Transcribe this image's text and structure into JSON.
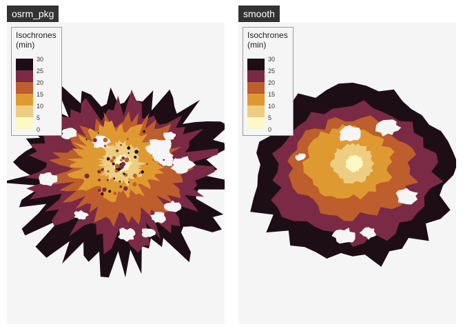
{
  "panels": [
    {
      "title": "osrm_pkg",
      "legend": {
        "title_line1": "Isochrones",
        "title_line2": "(min)",
        "ticks": [
          "30",
          "25",
          "20",
          "15",
          "10",
          "5",
          "0"
        ],
        "colors": [
          "#1d0e15",
          "#7a2a44",
          "#bd5e2c",
          "#df9931",
          "#edcd82",
          "#fdf9c6"
        ]
      },
      "style": "noisy"
    },
    {
      "title": "smooth",
      "legend": {
        "title_line1": "Isochrones",
        "title_line2": "(min)",
        "ticks": [
          "30",
          "25",
          "20",
          "15",
          "10",
          "5",
          "0"
        ],
        "colors": [
          "#1d0e15",
          "#7a2a44",
          "#bd5e2c",
          "#df9931",
          "#edcd82",
          "#fdf9c6"
        ]
      },
      "style": "smooth"
    }
  ]
}
